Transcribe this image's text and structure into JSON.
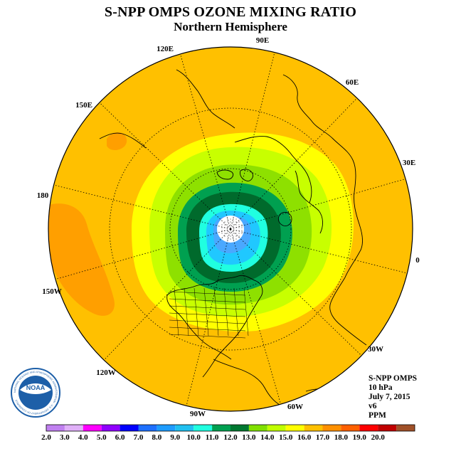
{
  "title": "S-NPP OMPS OZONE MIXING RATIO",
  "subtitle": "Northern Hemisphere",
  "longitude_labels": [
    {
      "text": "90E"
    },
    {
      "text": "60E"
    },
    {
      "text": "120E"
    },
    {
      "text": "150E"
    },
    {
      "text": "30E"
    },
    {
      "text": "180"
    },
    {
      "text": "0"
    },
    {
      "text": "150W"
    },
    {
      "text": "30W"
    },
    {
      "text": "120W"
    },
    {
      "text": "60W"
    },
    {
      "text": "90W"
    }
  ],
  "info": {
    "instrument": "S-NPP OMPS",
    "level": "10 hPa",
    "date": "July 7, 2015",
    "version": "v6",
    "units": "PPM"
  },
  "logo": {
    "text": "NOAA",
    "ring_text": "NATIONAL OCEANIC AND ATMOSPHERIC ADMINISTRATION · U.S. DEPARTMENT OF COMMERCE"
  },
  "colorbar": {
    "ticks": [
      "2.0",
      "3.0",
      "4.0",
      "5.0",
      "6.0",
      "7.0",
      "8.0",
      "9.0",
      "10.0",
      "11.0",
      "12.0",
      "13.0",
      "14.0",
      "15.0",
      "16.0",
      "17.0",
      "18.0",
      "19.0",
      "20.0"
    ],
    "colors": [
      "#c080f0",
      "#e0b0f8",
      "#ff00ff",
      "#9000ff",
      "#0000ff",
      "#1e70ff",
      "#1e9cff",
      "#20c0f0",
      "#20ffe0",
      "#00a050",
      "#007830",
      "#80e000",
      "#c0ff00",
      "#ffff00",
      "#ffc000",
      "#ff9000",
      "#ff6000",
      "#ff0000",
      "#c00000",
      "#a05028"
    ]
  },
  "map": {
    "background_color": "#ffc000",
    "contour_colors": {
      "c17": "#ff9f00",
      "c15": "#ffff00",
      "c14": "#c8ff00",
      "c13": "#8ee000",
      "c11": "#00a050",
      "c12": "#006a2c",
      "c10": "#20ffe0",
      "c9": "#20c8ff",
      "c8": "#4aa8ff"
    }
  }
}
